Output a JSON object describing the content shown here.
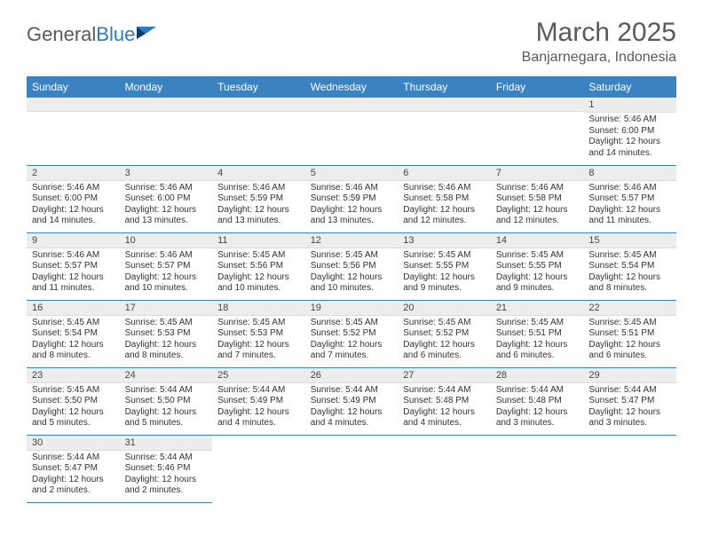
{
  "logo": {
    "text1": "General",
    "text2": "Blue"
  },
  "title": "March 2025",
  "location": "Banjarnegara, Indonesia",
  "colors": {
    "header_bg": "#3b83c0",
    "header_fg": "#ffffff",
    "daynum_bg": "#ededed",
    "cell_border": "#3b83c0",
    "text": "#333333",
    "title_color": "#5a5a5a"
  },
  "weekdays": [
    "Sunday",
    "Monday",
    "Tuesday",
    "Wednesday",
    "Thursday",
    "Friday",
    "Saturday"
  ],
  "weeks": [
    [
      {
        "n": "",
        "lines": [
          "",
          "",
          "",
          ""
        ]
      },
      {
        "n": "",
        "lines": [
          "",
          "",
          "",
          ""
        ]
      },
      {
        "n": "",
        "lines": [
          "",
          "",
          "",
          ""
        ]
      },
      {
        "n": "",
        "lines": [
          "",
          "",
          "",
          ""
        ]
      },
      {
        "n": "",
        "lines": [
          "",
          "",
          "",
          ""
        ]
      },
      {
        "n": "",
        "lines": [
          "",
          "",
          "",
          ""
        ]
      },
      {
        "n": "1",
        "lines": [
          "Sunrise: 5:46 AM",
          "Sunset: 6:00 PM",
          "Daylight: 12 hours",
          "and 14 minutes."
        ]
      }
    ],
    [
      {
        "n": "2",
        "lines": [
          "Sunrise: 5:46 AM",
          "Sunset: 6:00 PM",
          "Daylight: 12 hours",
          "and 14 minutes."
        ]
      },
      {
        "n": "3",
        "lines": [
          "Sunrise: 5:46 AM",
          "Sunset: 6:00 PM",
          "Daylight: 12 hours",
          "and 13 minutes."
        ]
      },
      {
        "n": "4",
        "lines": [
          "Sunrise: 5:46 AM",
          "Sunset: 5:59 PM",
          "Daylight: 12 hours",
          "and 13 minutes."
        ]
      },
      {
        "n": "5",
        "lines": [
          "Sunrise: 5:46 AM",
          "Sunset: 5:59 PM",
          "Daylight: 12 hours",
          "and 13 minutes."
        ]
      },
      {
        "n": "6",
        "lines": [
          "Sunrise: 5:46 AM",
          "Sunset: 5:58 PM",
          "Daylight: 12 hours",
          "and 12 minutes."
        ]
      },
      {
        "n": "7",
        "lines": [
          "Sunrise: 5:46 AM",
          "Sunset: 5:58 PM",
          "Daylight: 12 hours",
          "and 12 minutes."
        ]
      },
      {
        "n": "8",
        "lines": [
          "Sunrise: 5:46 AM",
          "Sunset: 5:57 PM",
          "Daylight: 12 hours",
          "and 11 minutes."
        ]
      }
    ],
    [
      {
        "n": "9",
        "lines": [
          "Sunrise: 5:46 AM",
          "Sunset: 5:57 PM",
          "Daylight: 12 hours",
          "and 11 minutes."
        ]
      },
      {
        "n": "10",
        "lines": [
          "Sunrise: 5:46 AM",
          "Sunset: 5:57 PM",
          "Daylight: 12 hours",
          "and 10 minutes."
        ]
      },
      {
        "n": "11",
        "lines": [
          "Sunrise: 5:45 AM",
          "Sunset: 5:56 PM",
          "Daylight: 12 hours",
          "and 10 minutes."
        ]
      },
      {
        "n": "12",
        "lines": [
          "Sunrise: 5:45 AM",
          "Sunset: 5:56 PM",
          "Daylight: 12 hours",
          "and 10 minutes."
        ]
      },
      {
        "n": "13",
        "lines": [
          "Sunrise: 5:45 AM",
          "Sunset: 5:55 PM",
          "Daylight: 12 hours",
          "and 9 minutes."
        ]
      },
      {
        "n": "14",
        "lines": [
          "Sunrise: 5:45 AM",
          "Sunset: 5:55 PM",
          "Daylight: 12 hours",
          "and 9 minutes."
        ]
      },
      {
        "n": "15",
        "lines": [
          "Sunrise: 5:45 AM",
          "Sunset: 5:54 PM",
          "Daylight: 12 hours",
          "and 8 minutes."
        ]
      }
    ],
    [
      {
        "n": "16",
        "lines": [
          "Sunrise: 5:45 AM",
          "Sunset: 5:54 PM",
          "Daylight: 12 hours",
          "and 8 minutes."
        ]
      },
      {
        "n": "17",
        "lines": [
          "Sunrise: 5:45 AM",
          "Sunset: 5:53 PM",
          "Daylight: 12 hours",
          "and 8 minutes."
        ]
      },
      {
        "n": "18",
        "lines": [
          "Sunrise: 5:45 AM",
          "Sunset: 5:53 PM",
          "Daylight: 12 hours",
          "and 7 minutes."
        ]
      },
      {
        "n": "19",
        "lines": [
          "Sunrise: 5:45 AM",
          "Sunset: 5:52 PM",
          "Daylight: 12 hours",
          "and 7 minutes."
        ]
      },
      {
        "n": "20",
        "lines": [
          "Sunrise: 5:45 AM",
          "Sunset: 5:52 PM",
          "Daylight: 12 hours",
          "and 6 minutes."
        ]
      },
      {
        "n": "21",
        "lines": [
          "Sunrise: 5:45 AM",
          "Sunset: 5:51 PM",
          "Daylight: 12 hours",
          "and 6 minutes."
        ]
      },
      {
        "n": "22",
        "lines": [
          "Sunrise: 5:45 AM",
          "Sunset: 5:51 PM",
          "Daylight: 12 hours",
          "and 6 minutes."
        ]
      }
    ],
    [
      {
        "n": "23",
        "lines": [
          "Sunrise: 5:45 AM",
          "Sunset: 5:50 PM",
          "Daylight: 12 hours",
          "and 5 minutes."
        ]
      },
      {
        "n": "24",
        "lines": [
          "Sunrise: 5:44 AM",
          "Sunset: 5:50 PM",
          "Daylight: 12 hours",
          "and 5 minutes."
        ]
      },
      {
        "n": "25",
        "lines": [
          "Sunrise: 5:44 AM",
          "Sunset: 5:49 PM",
          "Daylight: 12 hours",
          "and 4 minutes."
        ]
      },
      {
        "n": "26",
        "lines": [
          "Sunrise: 5:44 AM",
          "Sunset: 5:49 PM",
          "Daylight: 12 hours",
          "and 4 minutes."
        ]
      },
      {
        "n": "27",
        "lines": [
          "Sunrise: 5:44 AM",
          "Sunset: 5:48 PM",
          "Daylight: 12 hours",
          "and 4 minutes."
        ]
      },
      {
        "n": "28",
        "lines": [
          "Sunrise: 5:44 AM",
          "Sunset: 5:48 PM",
          "Daylight: 12 hours",
          "and 3 minutes."
        ]
      },
      {
        "n": "29",
        "lines": [
          "Sunrise: 5:44 AM",
          "Sunset: 5:47 PM",
          "Daylight: 12 hours",
          "and 3 minutes."
        ]
      }
    ],
    [
      {
        "n": "30",
        "lines": [
          "Sunrise: 5:44 AM",
          "Sunset: 5:47 PM",
          "Daylight: 12 hours",
          "and 2 minutes."
        ]
      },
      {
        "n": "31",
        "lines": [
          "Sunrise: 5:44 AM",
          "Sunset: 5:46 PM",
          "Daylight: 12 hours",
          "and 2 minutes."
        ]
      },
      {
        "n": "",
        "lines": [
          "",
          "",
          "",
          ""
        ]
      },
      {
        "n": "",
        "lines": [
          "",
          "",
          "",
          ""
        ]
      },
      {
        "n": "",
        "lines": [
          "",
          "",
          "",
          ""
        ]
      },
      {
        "n": "",
        "lines": [
          "",
          "",
          "",
          ""
        ]
      },
      {
        "n": "",
        "lines": [
          "",
          "",
          "",
          ""
        ]
      }
    ]
  ]
}
